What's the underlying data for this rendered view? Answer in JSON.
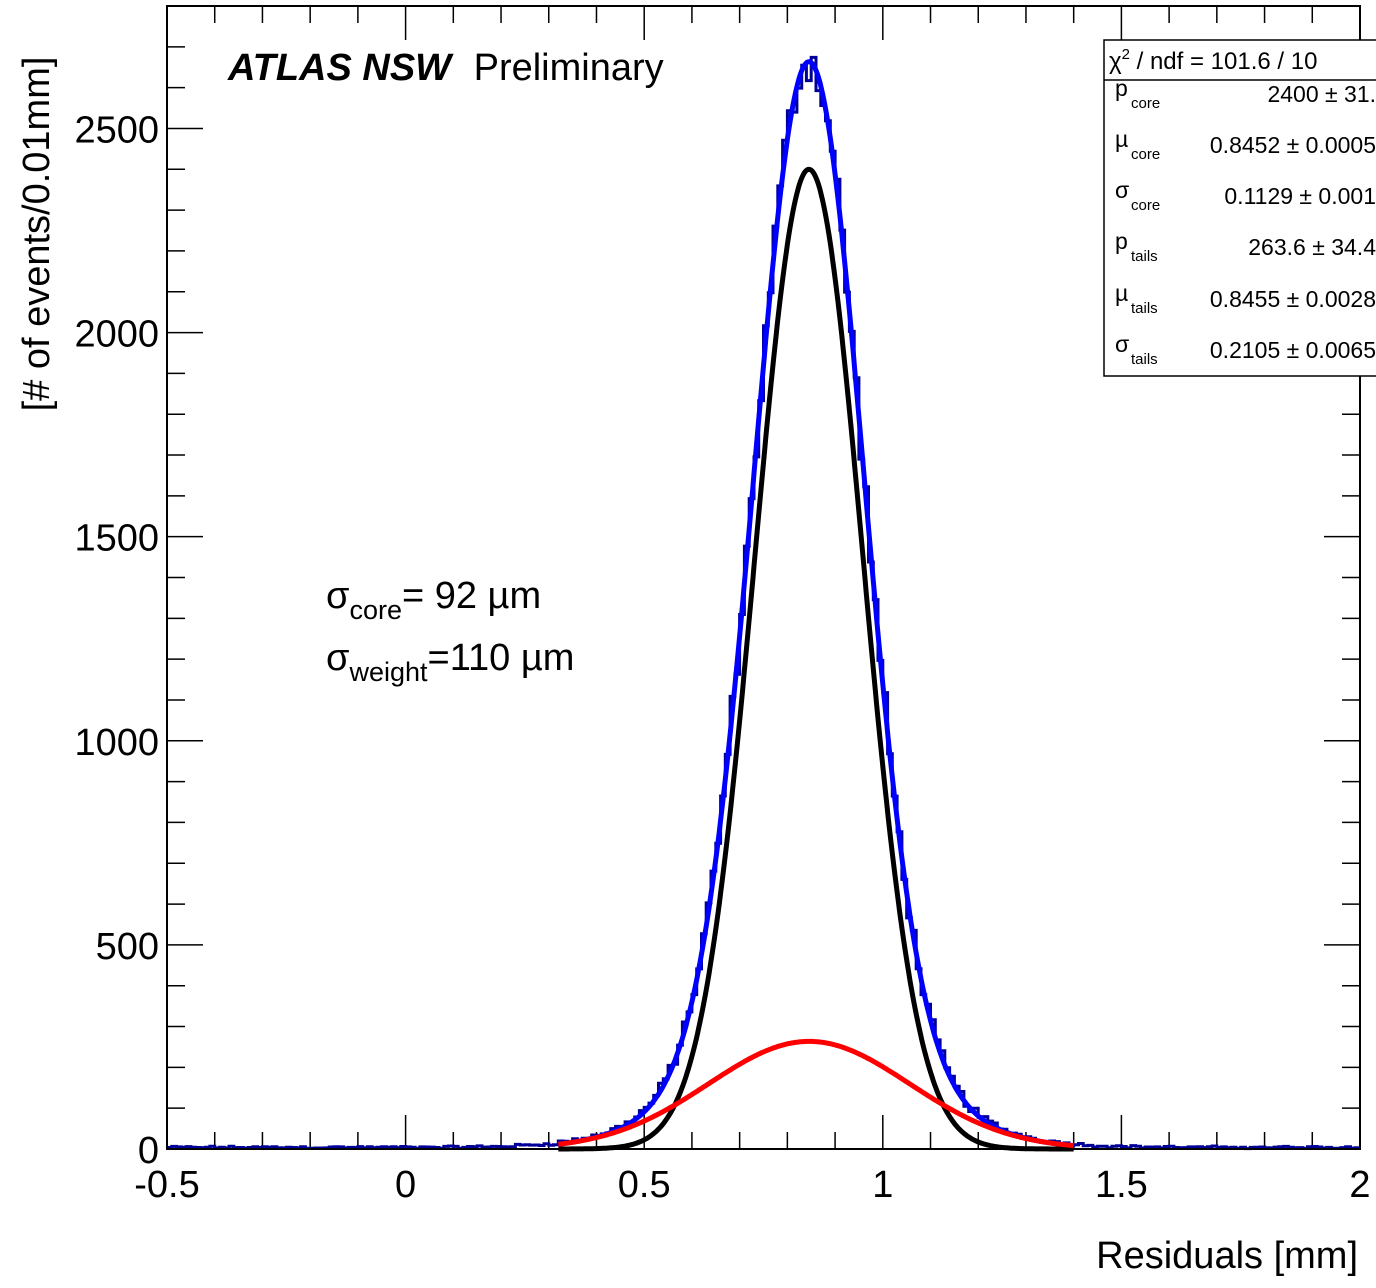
{
  "chart_data": {
    "type": "line",
    "title_bold": "ATLAS NSW",
    "title_rest": "Preliminary",
    "xlabel": "Residuals [mm]",
    "ylabel": "[# of events/0.01mm]",
    "xlim": [
      -0.5,
      2.0
    ],
    "ylim": [
      0,
      2800
    ],
    "x_ticks": [
      -0.5,
      0,
      0.5,
      1,
      1.5,
      2
    ],
    "x_tick_labels": [
      "-0.5",
      "0",
      "0.5",
      "1",
      "1.5",
      "2"
    ],
    "y_ticks": [
      0,
      500,
      1000,
      1500,
      2000,
      2500
    ],
    "y_tick_labels": [
      "0",
      "500",
      "1000",
      "1500",
      "2000",
      "2500"
    ],
    "grid": false,
    "legend": "none",
    "annotation": {
      "sigma_core": {
        "sym": "σ",
        "sub": "core",
        "text": "= 92 µm"
      },
      "sigma_weight": {
        "sym": "σ",
        "sub": "weight",
        "text": "=110 µm"
      }
    },
    "stats_box": {
      "header": {
        "sym": "χ",
        "sup": "2",
        "text": " / ndf = 101.6 / 10"
      },
      "rows": [
        {
          "sym": "p",
          "sub": "core",
          "value": "2400 ± 31."
        },
        {
          "sym": "µ",
          "sub": "core",
          "value": "0.8452 ± 0.0005"
        },
        {
          "sym": "σ",
          "sub": "core",
          "value": "0.1129 ± 0.001"
        },
        {
          "sym": "p",
          "sub": "tails",
          "value": "263.6 ± 34.4"
        },
        {
          "sym": "µ",
          "sub": "tails",
          "value": "0.8455 ± 0.0028"
        },
        {
          "sym": "σ",
          "sub": "tails",
          "value": "0.2105 ± 0.0065"
        }
      ]
    },
    "series": [
      {
        "kind": "histogram",
        "color": "#000099",
        "bin_width": 0.01,
        "x_range": [
          -0.5,
          2.0
        ],
        "model": {
          "core": {
            "amp": 2400,
            "mu": 0.8452,
            "sigma": 0.1129
          },
          "tails": {
            "amp": 263.6,
            "mu": 0.8455,
            "sigma": 0.2105
          }
        }
      },
      {
        "kind": "function",
        "role": "total-fit",
        "color": "#0000ff",
        "x_range": [
          0.32,
          1.4
        ],
        "amp1": 2400,
        "mu1": 0.8452,
        "sigma1": 0.1129,
        "amp2": 263.6,
        "mu2": 0.8455,
        "sigma2": 0.2105
      },
      {
        "kind": "function",
        "role": "core",
        "color": "#000000",
        "x_range": [
          0.32,
          1.4
        ],
        "amp": 2400,
        "mu": 0.8452,
        "sigma": 0.1129
      },
      {
        "kind": "function",
        "role": "tails",
        "color": "#ff0000",
        "x_range": [
          0.32,
          1.4
        ],
        "amp": 263.6,
        "mu": 0.8455,
        "sigma": 0.2105
      }
    ]
  }
}
